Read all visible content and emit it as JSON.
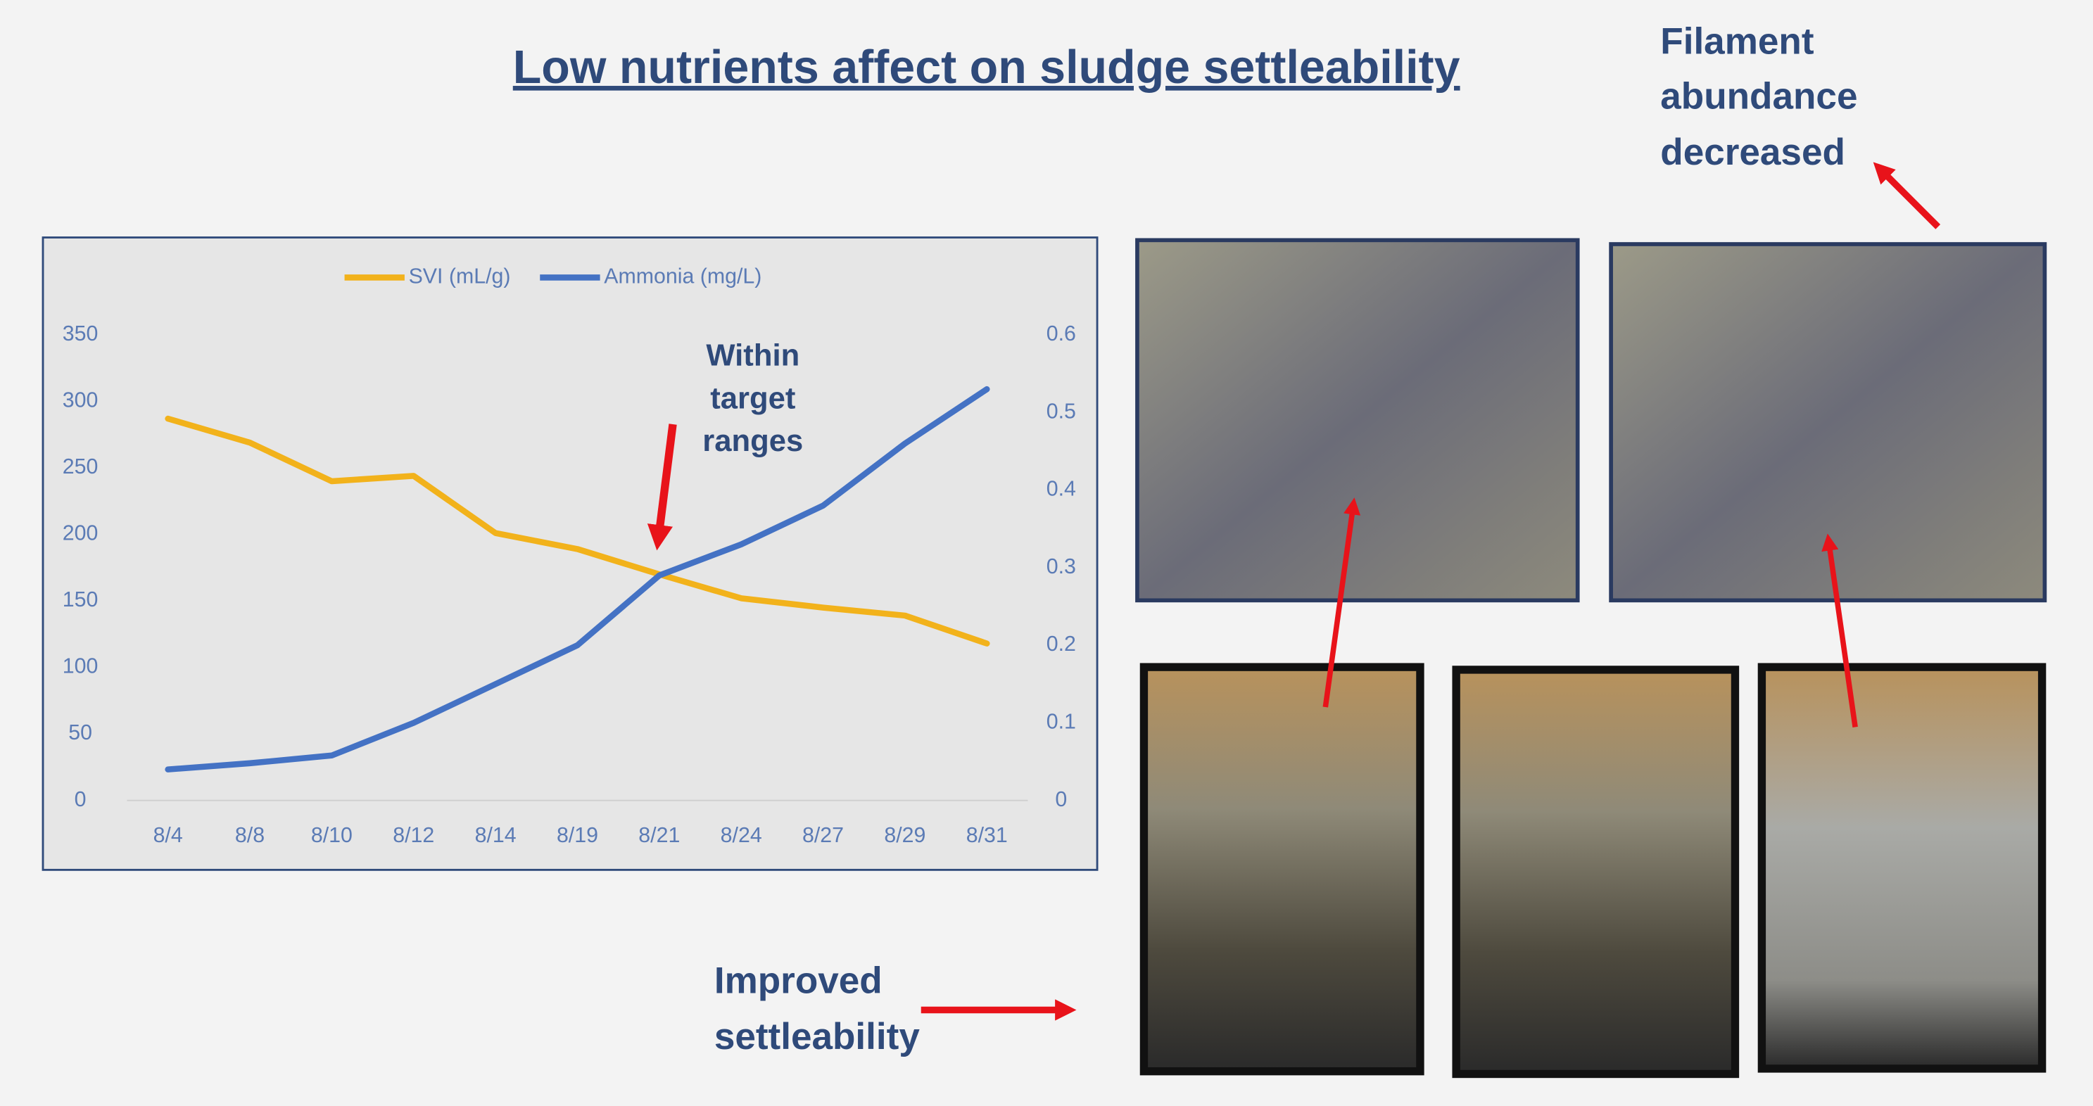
{
  "title": "Low nutrients affect on sludge settleability",
  "filament_note": [
    "Filament",
    "abundance",
    "decreased"
  ],
  "settle_note": [
    "Improved",
    "settleability"
  ],
  "chart_data": {
    "type": "line",
    "categories": [
      "8/4",
      "8/8",
      "8/10",
      "8/12",
      "8/14",
      "8/19",
      "8/21",
      "8/24",
      "8/27",
      "8/29",
      "8/31"
    ],
    "series": [
      {
        "name": "SVI (mL/g)",
        "color": "#f2b21b",
        "values": [
          287,
          269,
          240,
          244,
          201,
          189,
          170,
          152,
          145,
          139,
          118
        ]
      },
      {
        "name": "Ammonia (mg/L)",
        "color": "#4472c4",
        "axis": "y2",
        "values": [
          0.04,
          0.048,
          0.058,
          0.1,
          0.15,
          0.2,
          0.29,
          0.33,
          0.38,
          0.46,
          0.53
        ]
      }
    ],
    "ylim": [
      0,
      350
    ],
    "yticks": [
      0,
      50,
      100,
      150,
      200,
      250,
      300,
      350
    ],
    "y2lim": [
      0,
      0.6
    ],
    "y2ticks": [
      0,
      0.1,
      0.2,
      0.3,
      0.4,
      0.5,
      0.6
    ],
    "legend": "top",
    "grid": false,
    "annotation": [
      "Within",
      "target",
      "ranges"
    ]
  }
}
